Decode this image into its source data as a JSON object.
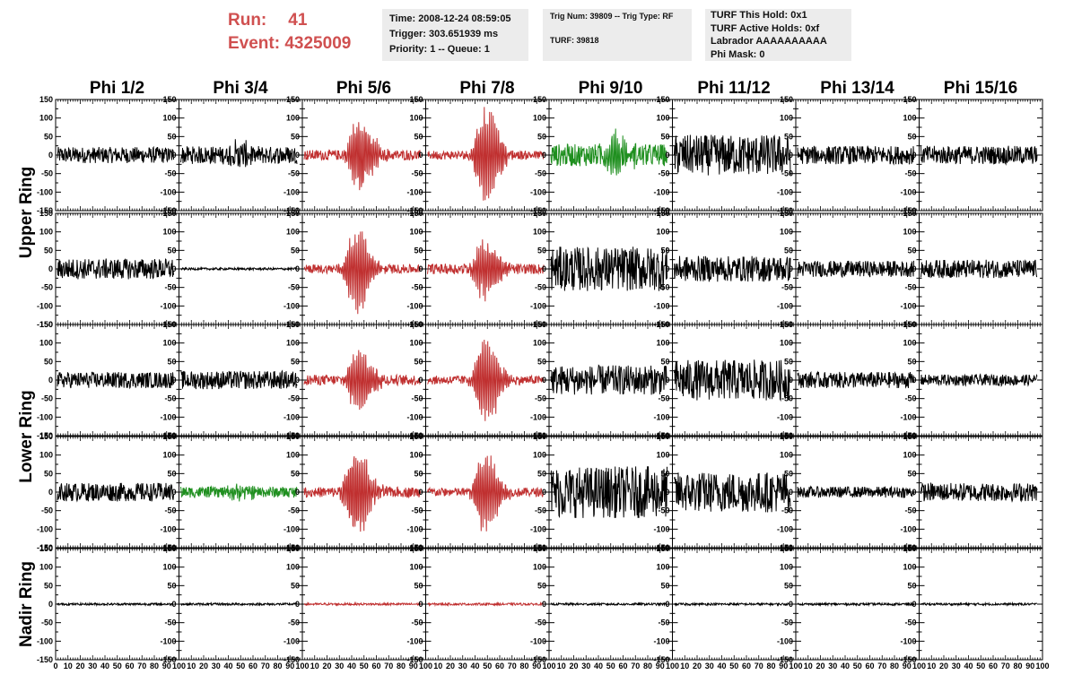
{
  "header": {
    "run_label": "Run:",
    "run_value": "41",
    "event_label": "Event:",
    "event_value": "4325009",
    "time": "Time: 2008-12-24 08:59:05",
    "trigger": "Trigger: 303.651939 ms",
    "priority": "Priority: 1 -- Queue: 1",
    "trig_num": "Trig Num: 39809 -- Trig Type: RF",
    "turf": "TURF: 39818",
    "turf_this_hold": "TURF This Hold: 0x1",
    "turf_active_holds": "TURF Active Holds: 0xf",
    "labrador": "Labrador AAAAAAAAAA",
    "phi_mask": "Phi Mask: 0"
  },
  "chart_data": {
    "type": "line",
    "columns": [
      "Phi 1/2",
      "Phi 3/4",
      "Phi 5/6",
      "Phi 7/8",
      "Phi 9/10",
      "Phi 11/12",
      "Phi 13/14",
      "Phi 15/16"
    ],
    "rows": [
      "Upper Ring",
      "Upper Ring",
      "Lower Ring",
      "Lower Ring",
      "Nadir Ring"
    ],
    "row_labels": [
      {
        "text": "Upper Ring",
        "rows": [
          0,
          1
        ]
      },
      {
        "text": "Lower Ring",
        "rows": [
          2,
          3
        ]
      },
      {
        "text": "Nadir Ring",
        "rows": [
          4
        ]
      }
    ],
    "x_ticks": [
      "0",
      "10",
      "20",
      "30",
      "40",
      "50",
      "60",
      "70",
      "80",
      "90",
      "100"
    ],
    "xlim": [
      0,
      100
    ],
    "y_ticks": [
      150,
      100,
      50,
      0,
      -50,
      -100,
      -150
    ],
    "y_tick_labels": [
      "150",
      "100",
      "50",
      "0",
      "-50",
      "-100",
      "-150"
    ],
    "ylim": [
      -150,
      150
    ],
    "colors": {
      "black": "#000000",
      "red": "#c03030",
      "green": "#1f8f1f"
    },
    "waveforms": [
      [
        {
          "color": "black",
          "amp": 22,
          "burst": 0,
          "center": 50
        },
        {
          "color": "black",
          "amp": 24,
          "burst": 25,
          "center": 50
        },
        {
          "color": "red",
          "amp": 14,
          "burst": 110,
          "center": 48
        },
        {
          "color": "red",
          "amp": 12,
          "burst": 145,
          "center": 50
        },
        {
          "color": "green",
          "amp": 30,
          "burst": 50,
          "center": 55
        },
        {
          "color": "black",
          "amp": 55,
          "burst": 0,
          "center": 50
        },
        {
          "color": "black",
          "amp": 25,
          "burst": 0,
          "center": 50
        },
        {
          "color": "black",
          "amp": 25,
          "burst": 0,
          "center": 50
        }
      ],
      [
        {
          "color": "black",
          "amp": 28,
          "burst": 0,
          "center": 50
        },
        {
          "color": "black",
          "amp": 3,
          "burst": 0,
          "center": 50
        },
        {
          "color": "red",
          "amp": 12,
          "burst": 120,
          "center": 45
        },
        {
          "color": "red",
          "amp": 14,
          "burst": 85,
          "center": 50
        },
        {
          "color": "black",
          "amp": 60,
          "burst": 0,
          "center": 50
        },
        {
          "color": "black",
          "amp": 35,
          "burst": 0,
          "center": 50
        },
        {
          "color": "black",
          "amp": 22,
          "burst": 0,
          "center": 50
        },
        {
          "color": "black",
          "amp": 25,
          "burst": 0,
          "center": 50
        }
      ],
      [
        {
          "color": "black",
          "amp": 22,
          "burst": 0,
          "center": 50
        },
        {
          "color": "black",
          "amp": 25,
          "burst": 0,
          "center": 50
        },
        {
          "color": "red",
          "amp": 14,
          "burst": 100,
          "center": 48
        },
        {
          "color": "red",
          "amp": 12,
          "burst": 125,
          "center": 50
        },
        {
          "color": "black",
          "amp": 40,
          "burst": 0,
          "center": 50
        },
        {
          "color": "black",
          "amp": 55,
          "burst": 0,
          "center": 50
        },
        {
          "color": "black",
          "amp": 22,
          "burst": 0,
          "center": 50
        },
        {
          "color": "black",
          "amp": 15,
          "burst": 0,
          "center": 50
        }
      ],
      [
        {
          "color": "black",
          "amp": 25,
          "burst": 0,
          "center": 50
        },
        {
          "color": "green",
          "amp": 15,
          "burst": 15,
          "center": 50
        },
        {
          "color": "red",
          "amp": 14,
          "burst": 135,
          "center": 45
        },
        {
          "color": "red",
          "amp": 12,
          "burst": 120,
          "center": 50
        },
        {
          "color": "black",
          "amp": 70,
          "burst": 0,
          "center": 50
        },
        {
          "color": "black",
          "amp": 55,
          "burst": 0,
          "center": 50
        },
        {
          "color": "black",
          "amp": 15,
          "burst": 0,
          "center": 50
        },
        {
          "color": "black",
          "amp": 25,
          "burst": 0,
          "center": 50
        }
      ],
      [
        {
          "color": "black",
          "amp": 3,
          "burst": 0,
          "center": 50
        },
        {
          "color": "black",
          "amp": 3,
          "burst": 0,
          "center": 50
        },
        {
          "color": "red",
          "amp": 3,
          "burst": 0,
          "center": 50
        },
        {
          "color": "red",
          "amp": 3,
          "burst": 0,
          "center": 50
        },
        {
          "color": "black",
          "amp": 3,
          "burst": 0,
          "center": 50
        },
        {
          "color": "black",
          "amp": 3,
          "burst": 0,
          "center": 50
        },
        {
          "color": "black",
          "amp": 3,
          "burst": 0,
          "center": 50
        },
        {
          "color": "black",
          "amp": 3,
          "burst": 0,
          "center": 50
        }
      ]
    ]
  }
}
